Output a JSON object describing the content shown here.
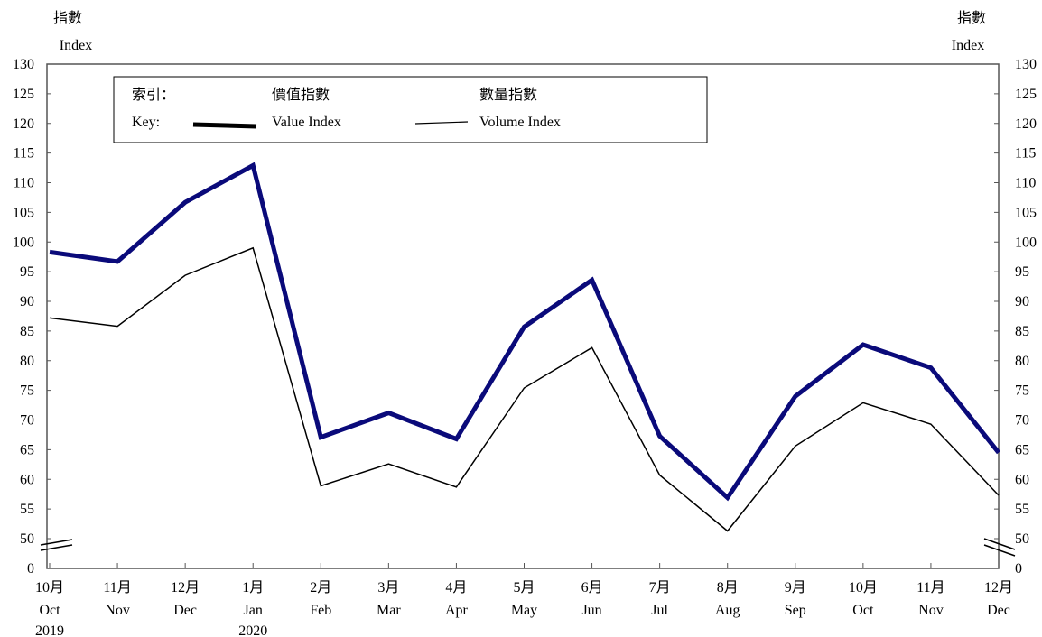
{
  "chart_data": {
    "type": "line",
    "y_axis_label": {
      "zh": "指數",
      "en": "Index"
    },
    "y_ticks": [
      "0",
      "50",
      "55",
      "60",
      "65",
      "70",
      "75",
      "80",
      "85",
      "90",
      "95",
      "100",
      "105",
      "110",
      "115",
      "120",
      "125",
      "130"
    ],
    "ylim": [
      50,
      130
    ],
    "axis_break": true,
    "categories": [
      {
        "zh": "10月",
        "en": "Oct",
        "year": "2019"
      },
      {
        "zh": "11月",
        "en": "Nov",
        "year": ""
      },
      {
        "zh": "12月",
        "en": "Dec",
        "year": ""
      },
      {
        "zh": "1月",
        "en": "Jan",
        "year": "2020"
      },
      {
        "zh": "2月",
        "en": "Feb",
        "year": ""
      },
      {
        "zh": "3月",
        "en": "Mar",
        "year": ""
      },
      {
        "zh": "4月",
        "en": "Apr",
        "year": ""
      },
      {
        "zh": "5月",
        "en": "May",
        "year": ""
      },
      {
        "zh": "6月",
        "en": "Jun",
        "year": ""
      },
      {
        "zh": "7月",
        "en": "Jul",
        "year": ""
      },
      {
        "zh": "8月",
        "en": "Aug",
        "year": ""
      },
      {
        "zh": "9月",
        "en": "Sep",
        "year": ""
      },
      {
        "zh": "10月",
        "en": "Oct",
        "year": ""
      },
      {
        "zh": "11月",
        "en": "Nov",
        "year": ""
      },
      {
        "zh": "12月",
        "en": "Dec",
        "year": ""
      }
    ],
    "legend": {
      "placement": "top-left",
      "key_zh": "索引：",
      "key_en": "Key:"
    },
    "series": [
      {
        "name_zh": "價值指數",
        "name_en": "Value Index",
        "color": "#0a0a7a",
        "style": "thick",
        "values": [
          98.3,
          96.7,
          106.7,
          112.9,
          67.1,
          71.2,
          66.8,
          85.7,
          93.6,
          67.3,
          56.9,
          74.0,
          82.7,
          78.8,
          64.5
        ]
      },
      {
        "name_zh": "數量指數",
        "name_en": "Volume Index",
        "color": "#000000",
        "style": "thin",
        "values": [
          87.2,
          85.8,
          94.4,
          99.0,
          58.9,
          62.6,
          58.7,
          75.4,
          82.2,
          60.7,
          51.3,
          65.6,
          72.9,
          69.3,
          57.3
        ]
      }
    ]
  }
}
